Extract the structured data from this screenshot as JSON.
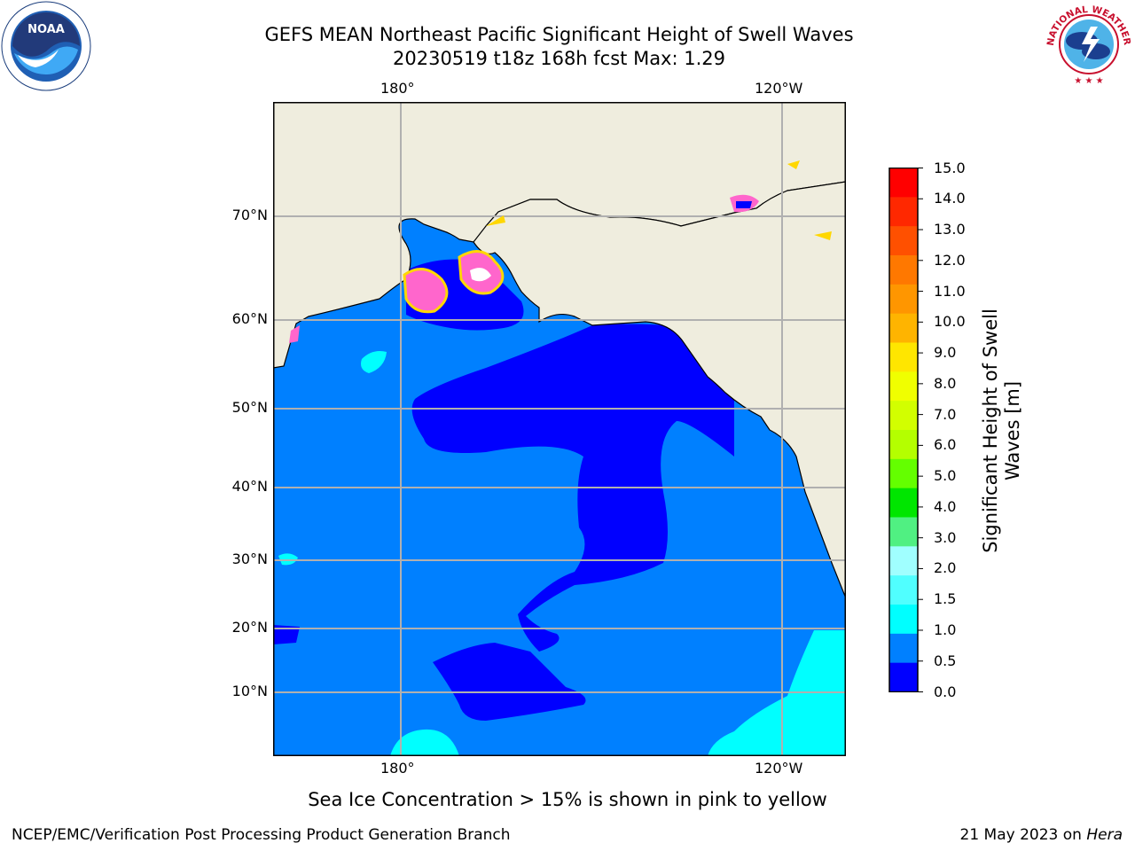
{
  "header": {
    "title_line1": "GEFS MEAN Northeast Pacific Significant Height of Swell Waves",
    "title_line2": "20230519 t18z 168h fcst   Max: 1.29"
  },
  "map": {
    "lon_labels": [
      "180°",
      "120°W"
    ],
    "lat_labels": [
      "70°N",
      "60°N",
      "50°N",
      "40°N",
      "30°N",
      "20°N",
      "10°N"
    ],
    "colors": {
      "ocean_low": "#0000ff",
      "ocean_mid": "#0080ff",
      "swell_high": "#00ffff",
      "land": "#efedde",
      "grid": "#b0b0b0",
      "sea_ice": "#ff66cc"
    }
  },
  "colorbar": {
    "label": "Significant Height of Swell Waves [m]",
    "label_line1": "Significant Height of Swell",
    "label_line2": "Waves [m]",
    "ticks": [
      "15.0",
      "14.0",
      "13.0",
      "12.0",
      "11.0",
      "10.0",
      "9.0",
      "8.0",
      "7.0",
      "6.0",
      "5.0",
      "4.0",
      "3.0",
      "2.0",
      "1.5",
      "1.0",
      "0.5",
      "0.0"
    ],
    "colors_top_to_bottom": [
      "#ff0000",
      "#ff2800",
      "#ff5000",
      "#ff7800",
      "#ff9600",
      "#ffb400",
      "#ffe600",
      "#f0ff00",
      "#d2ff00",
      "#b4ff00",
      "#64ff00",
      "#00e600",
      "#50f082",
      "#a0ffff",
      "#50ffff",
      "#00ffff",
      "#0080ff",
      "#0000ff"
    ]
  },
  "caption": "Sea Ice Concentration > 15% is shown in pink to yellow",
  "footer": {
    "left": "NCEP/EMC/Verification Post Processing Product Generation Branch",
    "date": "21 May 2023 on ",
    "machine": "Hera"
  },
  "logos": {
    "noaa_text": "NOAA",
    "nws_text": "NATIONAL WEATHER SERVICE"
  }
}
